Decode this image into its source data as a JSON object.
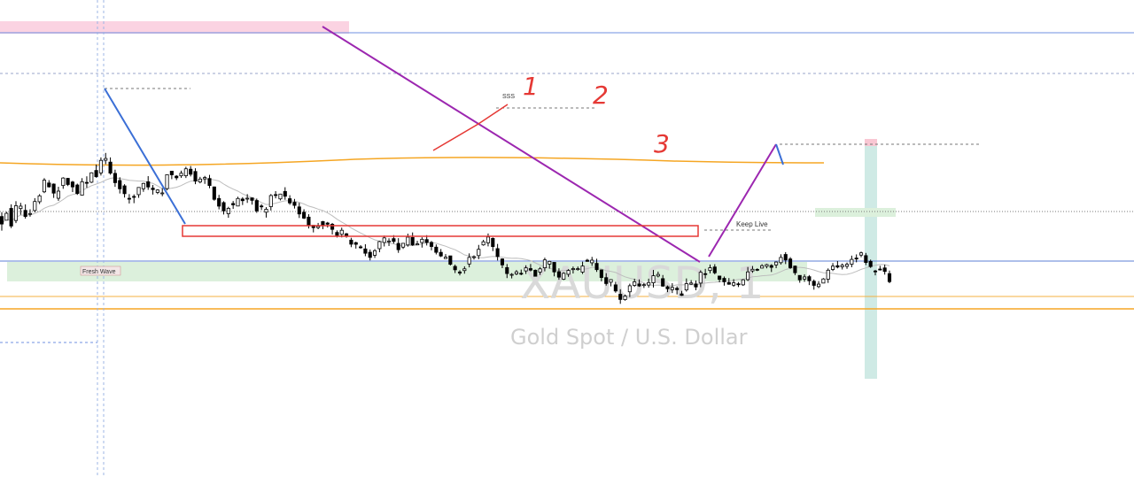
{
  "watermark": {
    "symbol": "XAUUSD, 1",
    "name": "Gold Spot / U.S. Dollar"
  },
  "labels": {
    "fresh_wave": "Fresh Wave",
    "keep_live": "Keep Live",
    "sss": "SSS"
  },
  "wave_numbers": [
    "1",
    "2",
    "3"
  ],
  "colors": {
    "up_candle_body": "#ffffff",
    "down_candle_body": "#000000",
    "candle_outline": "#000000",
    "ma_long": "#f5a623",
    "ma_short": "#bdbdbd",
    "diagonal_main": "#9c27b0",
    "diagonal_blue": "#3b6fd6",
    "diagonal_red": "#e53935",
    "supply_zone": "#f8bbd0",
    "demand_zone": "#c8e6c9",
    "position_zone": "#b2dfdb",
    "support_line": "#f5a623",
    "resistance_line": "#5c7fd6",
    "annotation_red": "#e53935"
  },
  "chart_data": {
    "type": "candlestick",
    "symbol": "XAUUSD",
    "timeframe": "1",
    "y_axis_shown": false,
    "x_axis_shown": false,
    "ylim": [
      0,
      539
    ],
    "candles": [
      [
        294.33,
        285.87,
        299.28,
        278.41
      ],
      [
        290.16,
        297.98,
        299.72,
        290.03
      ],
      [
        303.5,
        283.61,
        308.12,
        281.22
      ],
      [
        289.81,
        306.57,
        311.67,
        286.89
      ],
      [
        303.36,
        306.05,
        309.81,
        296.38
      ],
      [
        301.27,
        294.35,
        308.11,
        291.96
      ],
      [
        297.5,
        297.78,
        302.52,
        294.17
      ],
      [
        301.13,
        311.3,
        315.11,
        299.11
      ],
      [
        311.04,
        317.73,
        319.61,
        308.43
      ],
      [
        322.25,
        335.42,
        337.73,
        320.79
      ],
      [
        332.22,
        327.86,
        335.43,
        327.06
      ],
      [
        331.03,
        320.77,
        331.71,
        315.38
      ],
      [
        314.96,
        323.01,
        327.95,
        312.08
      ],
      [
        329.37,
        337.84,
        338.74,
        325.65
      ],
      [
        337.48,
        330.52,
        337.98,
        328.78
      ],
      [
        333.33,
        327.81,
        334.64,
        321.96
      ],
      [
        329.98,
        320.31,
        331.5,
        318.78
      ],
      [
        318.48,
        333.67,
        337.7,
        318.02
      ],
      [
        332.91,
        332.03,
        339.77,
        326.77
      ],
      [
        333.1,
        343.72,
        344.28,
        332.18
      ],
      [
        346.37,
        339.43,
        353.13,
        338.16
      ],
      [
        343.61,
        357.81,
        361.13,
        340.69
      ],
      [
        357.93,
        359.94,
        366.2,
        353.43
      ],
      [
        355.81,
        343.37,
        361.16,
        341.6
      ],
      [
        343.06,
        332.6,
        347.26,
        327.87
      ],
      [
        335.0,
        325.65,
        338.68,
        320.36
      ],
      [
        328.97,
        320.16,
        330.87,
        315.77
      ],
      [
        314.92,
        314.78,
        319.62,
        309.05
      ],
      [
        317.02,
        316.08,
        319.36,
        309.42
      ],
      [
        319.06,
        327.19,
        327.37,
        315.46
      ],
      [
        325.68,
        331.73,
        332.48,
        322.26
      ],
      [
        333.63,
        327.71,
        339.97,
        324.47
      ],
      [
        326.37,
        324.75,
        329.93,
        319.11
      ],
      [
        321.56,
        324.29,
        325.14,
        319.67
      ],
      [
        320.62,
        321.01,
        326.42,
        317.25
      ],
      [
        325.86,
        341.59,
        342.06,
        323.9
      ],
      [
        345.56,
        341.49,
        345.84,
        336.55
      ],
      [
        339.94,
        338.09,
        341.11,
        335.5
      ],
      [
        340.34,
        343.27,
        346.14,
        338.02
      ],
      [
        340.39,
        348.26,
        350.61,
        337.86
      ],
      [
        347.8,
        342.1,
        351.42,
        339.64
      ],
      [
        345.25,
        334.34,
        348.86,
        330.87
      ],
      [
        333.36,
        336.7,
        339.15,
        331.85
      ],
      [
        336.98,
        338.4,
        340.24,
        331.22
      ],
      [
        337.3,
        329.42,
        341.41,
        326.29
      ],
      [
        327.78,
        313.77,
        328.24,
        312.21
      ],
      [
        314.71,
        306.06,
        318.82,
        302.4
      ],
      [
        310.07,
        300.67,
        311.6,
        296.66
      ],
      [
        297.49,
        303.55,
        305.33,
        292.91
      ],
      [
        309.06,
        307.51,
        311.86,
        303.03
      ],
      [
        306.2,
        314.73,
        316.67,
        306.27
      ],
      [
        314.11,
        312.25,
        316.17,
        307.33
      ],
      [
        314.82,
        315.04,
        319.64,
        309.72
      ],
      [
        315.37,
        312.63,
        315.45,
        307.77
      ],
      [
        312.42,
        300.72,
        314.63,
        298.47
      ],
      [
        306.26,
        305.62,
        308.32,
        301.66
      ],
      [
        299.17,
        302.6,
        304.92,
        293.14
      ],
      [
        305.48,
        318.05,
        319.73,
        301.08
      ],
      [
        319.09,
        318.92,
        323.01,
        314.87
      ],
      [
        314.28,
        319.7,
        320.08,
        312.55
      ],
      [
        322.65,
        317.26,
        327.45,
        313.28
      ],
      [
        314.51,
        309.68,
        318.42,
        307.61
      ],
      [
        310.46,
        306.93,
        314.23,
        303.35
      ],
      [
        305.21,
        297.23,
        309.82,
        292.69
      ],
      [
        299.15,
        292.49,
        302.56,
        291.49
      ],
      [
        293.65,
        284.49,
        296.95,
        280.82
      ],
      [
        284.46,
        281.81,
        284.7,
        276.39
      ],
      [
        281.81,
        283.32,
        287.09,
        280.01
      ],
      [
        288.6,
        284.01,
        289.35,
        280.05
      ],
      [
        286.99,
        285.65,
        288.24,
        281.92
      ],
      [
        285.61,
        279.84,
        287.04,
        274.06
      ],
      [
        276.32,
        273.03,
        278.69,
        270.61
      ],
      [
        274.2,
        278.81,
        281.84,
        270.73
      ],
      [
        274.83,
        272.59,
        275.72,
        270.41
      ],
      [
        267.68,
        263.07,
        270.3,
        259.71
      ],
      [
        264.79,
        262.95,
        265.85,
        258.08
      ],
      [
        260.07,
        259.03,
        262.03,
        258.01
      ],
      [
        257.73,
        252.84,
        262.99,
        249.52
      ],
      [
        253.97,
        248.15,
        257.07,
        244.76
      ],
      [
        250.55,
        255.73,
        257.52,
        247.53
      ],
      [
        258.01,
        266.05,
        266.92,
        253.94
      ],
      [
        265.01,
        270.17,
        272.81,
        260.5
      ],
      [
        265.76,
        266.69,
        269.74,
        261.01
      ],
      [
        269.34,
        266.23,
        273.27,
        263.73
      ],
      [
        263.96,
        256.84,
        269.86,
        253.3
      ],
      [
        259.73,
        264.08,
        264.49,
        257.72
      ],
      [
        262.22,
        271.04,
        274.95,
        260.27
      ],
      [
        270.63,
        262.19,
        276.35,
        261.17
      ],
      [
        262.31,
        263.49,
        266.89,
        262.06
      ],
      [
        264.9,
        268.64,
        270.89,
        259.23
      ],
      [
        268.29,
        264.97,
        273.25,
        261.62
      ],
      [
        265.04,
        260.48,
        266.69,
        256.16
      ],
      [
        259.74,
        253.88,
        262.75,
        251.49
      ],
      [
        253.86,
        249.74,
        257.59,
        248.52
      ],
      [
        246.81,
        248.38,
        251.84,
        246.93
      ],
      [
        249.86,
        240.42,
        249.82,
        239.0
      ],
      [
        237.96,
        234.14,
        240.04,
        230.46
      ],
      [
        231.68,
        230.38,
        233.63,
        227.86
      ],
      [
        233.27,
        235.23,
        238.04,
        229.73
      ],
      [
        240.68,
        248.15,
        252.67,
        236.88
      ],
      [
        248.18,
        248.95,
        250.43,
        245.7
      ],
      [
        250.2,
        257.3,
        262.26,
        246.18
      ],
      [
        262.29,
        265.81,
        268.0,
        261.32
      ],
      [
        264.57,
        271.18,
        275.19,
        260.6
      ],
      [
        269.6,
        260.37,
        270.72,
        255.27
      ],
      [
        258.07,
        249.1,
        263.38,
        244.68
      ],
      [
        246.41,
        239.68,
        247.13,
        236.0
      ],
      [
        236.63,
        229.89,
        240.66,
        224.78
      ],
      [
        228.8,
        228.97,
        230.36,
        224.41
      ],
      [
        229.51,
        231.81,
        233.88,
        228.09
      ],
      [
        230.21,
        229.95,
        234.41,
        228.02
      ],
      [
        232.89,
        236.32,
        239.23,
        229.43
      ],
      [
        235.49,
        233.75,
        240.69,
        232.34
      ],
      [
        233.65,
        226.82,
        234.49,
        226.54
      ],
      [
        231.54,
        235.21,
        237.27,
        228.38
      ],
      [
        236.4,
        245.32,
        247.82,
        232.42
      ],
      [
        240.57,
        243.65,
        244.39,
        235.45
      ],
      [
        242.51,
        231.74,
        242.56,
        226.76
      ],
      [
        231.99,
        225.81,
        235.8,
        222.85
      ],
      [
        223.48,
        230.17,
        231.35,
        222.59
      ],
      [
        229.07,
        233.38,
        234.81,
        226.17
      ],
      [
        234.43,
        235.51,
        237.83,
        229.94
      ],
      [
        235.18,
        235.43,
        237.82,
        233.1
      ],
      [
        231.59,
        238.37,
        243.32,
        229.39
      ],
      [
        244.96,
        243.64,
        246.51,
        243.34
      ],
      [
        242.06,
        245.0,
        248.72,
        238.6
      ],
      [
        241.38,
        234.31,
        246.63,
        231.75
      ],
      [
        234.01,
        225.44,
        234.57,
        221.13
      ],
      [
        225.28,
        218.61,
        230.32,
        216.27
      ],
      [
        220.1,
        223.06,
        223.52,
        215.41
      ],
      [
        217.14,
        210.18,
        220.58,
        208.24
      ],
      [
        206.48,
        200.63,
        212.16,
        195.68
      ],
      [
        200.42,
        204.4,
        206.1,
        199.23
      ],
      [
        209.26,
        216.09,
        218.43,
        203.32
      ],
      [
        216.45,
        220.57,
        224.07,
        214.84
      ],
      [
        218.13,
        215.88,
        223.28,
        214.83
      ],
      [
        216.31,
        217.34,
        219.1,
        213.6
      ],
      [
        216.86,
        219.68,
        224.14,
        214.01
      ],
      [
        219.41,
        227.43,
        233.93,
        214.11
      ],
      [
        227.09,
        228.91,
        232.11,
        225.55
      ],
      [
        224.13,
        215.71,
        228.24,
        214.99
      ],
      [
        214.87,
        212.72,
        216.43,
        208.9
      ],
      [
        211.68,
        214.22,
        219.06,
        207.86
      ],
      [
        213.19,
        211.69,
        215.47,
        206.32
      ],
      [
        206.94,
        205.19,
        210.29,
        204.67
      ],
      [
        211.38,
        218.53,
        224.37,
        209.48
      ],
      [
        217.88,
        219.21,
        222.45,
        217.14
      ],
      [
        218.13,
        214.77,
        222.1,
        211.04
      ],
      [
        219.14,
        231.31,
        233.59,
        214.51
      ],
      [
        229.76,
        229.06,
        235.22,
        224.4
      ],
      [
        233.34,
        236.39,
        240.09,
        230.15
      ],
      [
        237.32,
        230.78,
        240.48,
        229.01
      ],
      [
        227.08,
        223.3,
        227.45,
        220.03
      ],
      [
        224.43,
        220.56,
        226.55,
        216.24
      ],
      [
        219.78,
        217.8,
        224.79,
        217.26
      ],
      [
        216.73,
        219.42,
        223.55,
        214.99
      ],
      [
        218.27,
        218.24,
        220.24,
        214.66
      ],
      [
        217.14,
        222.82,
        223.61,
        215.89
      ],
      [
        223.04,
        231.76,
        237.32,
        221.47
      ],
      [
        232.88,
        234.72,
        238.42,
        230.78
      ],
      [
        234.6,
        233.95,
        235.82,
        232.68
      ],
      [
        236.08,
        238.76,
        240.48,
        235.76
      ],
      [
        238.08,
        239.99,
        240.91,
        235.78
      ],
      [
        238.97,
        236.89,
        240.47,
        231.65
      ],
      [
        239.67,
        242.91,
        243.58,
        235.96
      ],
      [
        242.2,
        248.12,
        251.68,
        240.09
      ],
      [
        251.47,
        245.25,
        254.08,
        240.61
      ],
      [
        246.39,
        236.55,
        248.45,
        235.18
      ],
      [
        238.34,
        230.8,
        238.96,
        228.17
      ],
      [
        227.79,
        222.79,
        227.86,
        219.52
      ],
      [
        223.71,
        226.09,
        229.06,
        220.57
      ],
      [
        226.36,
        221.74,
        228.19,
        216.86
      ],
      [
        221.2,
        216.54,
        223.17,
        211.67
      ],
      [
        215.16,
        217.93,
        221.31,
        213.51
      ],
      [
        219.15,
        223.79,
        224.76,
        219.44
      ],
      [
        223.48,
        233.68,
        235.68,
        219.28
      ],
      [
        234.49,
        238.29,
        241.76,
        232.7
      ],
      [
        238.75,
        237.22,
        244.05,
        235.78
      ],
      [
        237.54,
        239.29,
        241.28,
        234.51
      ],
      [
        238.04,
        240.34,
        242.33,
        235.22
      ],
      [
        240.41,
        245.9,
        250.15,
        237.06
      ],
      [
        247.38,
        247.27,
        251.56,
        242.6
      ],
      [
        250.77,
        253.3,
        254.67,
        248.34
      ],
      [
        250.15,
        242.4,
        253.19,
        239.48
      ],
      [
        243.66,
        237.79,
        245.66,
        236.23
      ],
      [
        232.8,
        231.94,
        234.07,
        227.88
      ],
      [
        234.95,
        234.23,
        238.65,
        233.33
      ],
      [
        236.25,
        232.26,
        240.01,
        228.68
      ],
      [
        229.81,
        220.78,
        233.2,
        218.99
      ]
    ],
    "candle_y_mode": "pixel-free synthetic price units, inverted; higher value = higher price",
    "moving_averages": [
      {
        "color": "ma_long",
        "shape": "slow flat curve around the middle of the chart"
      },
      {
        "color": "ma_short",
        "shape": "fast smoothing of closes"
      }
    ]
  }
}
